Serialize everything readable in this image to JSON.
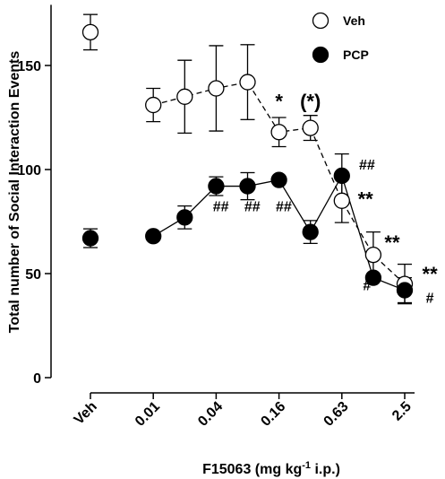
{
  "chart_data": {
    "type": "line",
    "xlabel": "F15063 (mg kg",
    "xlabel_sup": "-1",
    "xlabel_tail": " i.p.)",
    "ylabel": "Total number of Social Interaction Events",
    "ylim": [
      0,
      180
    ],
    "yticks": [
      0,
      50,
      100,
      150
    ],
    "x_ticks": [
      {
        "label": "Veh",
        "x": 0
      },
      {
        "label": "0.01",
        "x": 2
      },
      {
        "label": "0.04",
        "x": 4
      },
      {
        "label": "0.16",
        "x": 6
      },
      {
        "label": "0.63",
        "x": 8
      },
      {
        "label": "2.5",
        "x": 10
      }
    ],
    "x_range": [
      0,
      10.5
    ],
    "series": [
      {
        "name": "Veh",
        "style": "dashed",
        "marker": "open",
        "points": [
          {
            "x": 0,
            "y": 166,
            "err": 8.5,
            "connected": false
          },
          {
            "x": 2,
            "y": 131,
            "err": 8
          },
          {
            "x": 3,
            "y": 135,
            "err": 17.5
          },
          {
            "x": 4,
            "y": 139,
            "err": 20.5
          },
          {
            "x": 5,
            "y": 142,
            "err": 18
          },
          {
            "x": 6,
            "y": 118,
            "err": 7
          },
          {
            "x": 7,
            "y": 120,
            "err": 6
          },
          {
            "x": 8,
            "y": 85,
            "err": 10.5
          },
          {
            "x": 9,
            "y": 59,
            "err": 11
          },
          {
            "x": 10,
            "y": 45,
            "err": 9.5
          }
        ]
      },
      {
        "name": "PCP",
        "style": "solid",
        "marker": "filled",
        "points": [
          {
            "x": 0,
            "y": 67,
            "err": 4.5,
            "connected": false
          },
          {
            "x": 2,
            "y": 68,
            "err": 0
          },
          {
            "x": 3,
            "y": 77,
            "err": 5.5
          },
          {
            "x": 4,
            "y": 92,
            "err": 4.5
          },
          {
            "x": 5,
            "y": 92,
            "err": 6.5
          },
          {
            "x": 6,
            "y": 95,
            "err": 0
          },
          {
            "x": 7,
            "y": 70,
            "err": 5.5
          },
          {
            "x": 8,
            "y": 97,
            "err": 10.5
          },
          {
            "x": 9,
            "y": 48,
            "err": 0
          },
          {
            "x": 10,
            "y": 42,
            "err": 6
          }
        ]
      }
    ],
    "annotations": [
      {
        "text": "*",
        "x": 6,
        "y": 133
      },
      {
        "text": "(*)",
        "x": 7,
        "y": 133
      },
      {
        "text": "**",
        "x": 8.75,
        "y": 86
      },
      {
        "text": "**",
        "x": 9.6,
        "y": 65
      },
      {
        "text": "**",
        "x": 10.8,
        "y": 50
      },
      {
        "text": "##",
        "x": 4.15,
        "y": 80
      },
      {
        "text": "##",
        "x": 5.15,
        "y": 80
      },
      {
        "text": "##",
        "x": 6.15,
        "y": 80
      },
      {
        "text": "##",
        "x": 8.8,
        "y": 100
      },
      {
        "text": "#",
        "x": 8.8,
        "y": 42
      },
      {
        "text": "#",
        "x": 10.8,
        "y": 36
      }
    ],
    "legend": {
      "position": "top-right",
      "entries": [
        "Veh",
        "PCP"
      ]
    }
  }
}
